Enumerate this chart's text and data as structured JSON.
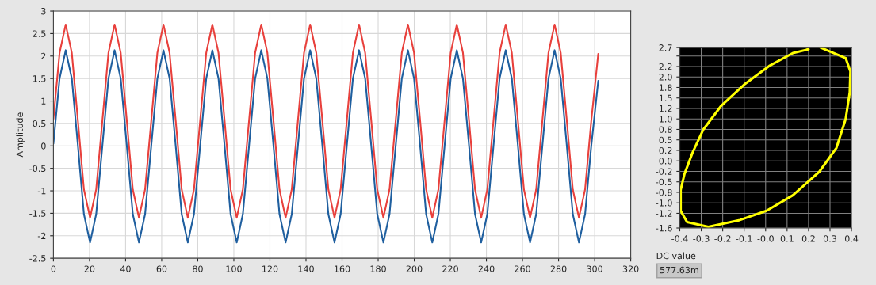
{
  "chart_data": [
    {
      "type": "line",
      "ylabel": "Amplitude",
      "x": [
        0,
        3.4,
        6.8,
        10.2,
        13.6,
        16.9,
        20.3,
        23.7,
        27.1,
        30.5,
        33.9,
        37.3,
        40.7,
        44.0,
        47.4,
        50.8,
        54.2,
        57.6,
        61.0,
        64.4,
        67.8,
        71.1,
        74.5,
        77.9,
        81.3,
        84.7,
        88.1,
        91.5,
        94.9,
        98.2,
        101.6,
        105.0,
        108.4,
        111.8,
        115.2,
        118.6,
        122.0,
        125.3,
        128.7,
        132.1,
        135.5,
        138.9,
        142.3,
        145.7,
        149.1,
        152.4,
        155.8,
        159.2,
        162.6,
        166.0,
        169.4,
        172.8,
        176.2,
        179.5,
        182.9,
        186.3,
        189.7,
        193.1,
        196.5,
        199.9,
        203.3,
        206.6,
        210.0,
        213.4,
        216.8,
        220.2,
        223.6,
        227.0,
        230.4,
        233.7,
        237.1,
        240.5,
        243.9,
        247.3,
        250.7,
        254.1,
        257.5,
        260.8,
        264.2,
        267.6,
        271.0,
        274.4,
        277.8,
        281.2,
        284.6,
        287.9,
        291.3,
        294.7,
        298.1,
        302
      ],
      "series": [
        {
          "color": "#e8403c",
          "values": [
            0.6,
            2.07,
            2.7,
            2.07,
            0.55,
            -0.97,
            -1.6,
            -0.97,
            0.55,
            2.07,
            2.7,
            2.07,
            0.55,
            -0.97,
            -1.6,
            -0.97,
            0.55,
            2.07,
            2.7,
            2.07,
            0.55,
            -0.97,
            -1.6,
            -0.97,
            0.55,
            2.07,
            2.7,
            2.07,
            0.55,
            -0.97,
            -1.6,
            -0.97,
            0.55,
            2.07,
            2.7,
            2.07,
            0.55,
            -0.97,
            -1.6,
            -0.97,
            0.55,
            2.07,
            2.7,
            2.07,
            0.55,
            -0.97,
            -1.6,
            -0.97,
            0.55,
            2.07,
            2.7,
            2.07,
            0.55,
            -0.97,
            -1.6,
            -0.97,
            0.55,
            2.07,
            2.7,
            2.07,
            0.55,
            -0.97,
            -1.6,
            -0.97,
            0.55,
            2.07,
            2.7,
            2.07,
            0.55,
            -0.97,
            -1.6,
            -0.97,
            0.55,
            2.07,
            2.7,
            2.07,
            0.55,
            -0.97,
            -1.6,
            -0.97,
            0.55,
            2.07,
            2.7,
            2.07,
            0.55,
            -0.97,
            -1.6,
            -0.97,
            0.55,
            2.05
          ]
        },
        {
          "color": "#1f5f9f",
          "values": [
            0.05,
            1.5,
            2.13,
            1.5,
            -0.01,
            -1.52,
            -2.15,
            -1.52,
            -0.01,
            1.5,
            2.13,
            1.5,
            -0.01,
            -1.52,
            -2.15,
            -1.52,
            -0.01,
            1.5,
            2.13,
            1.5,
            -0.01,
            -1.52,
            -2.15,
            -1.52,
            -0.01,
            1.5,
            2.13,
            1.5,
            -0.01,
            -1.52,
            -2.15,
            -1.52,
            -0.01,
            1.5,
            2.13,
            1.5,
            -0.01,
            -1.52,
            -2.15,
            -1.52,
            -0.01,
            1.5,
            2.13,
            1.5,
            -0.01,
            -1.52,
            -2.15,
            -1.52,
            -0.01,
            1.5,
            2.13,
            1.5,
            -0.01,
            -1.52,
            -2.15,
            -1.52,
            -0.01,
            1.5,
            2.13,
            1.5,
            -0.01,
            -1.52,
            -2.15,
            -1.52,
            -0.01,
            1.5,
            2.13,
            1.5,
            -0.01,
            -1.52,
            -2.15,
            -1.52,
            -0.01,
            1.5,
            2.13,
            1.5,
            -0.01,
            -1.52,
            -2.15,
            -1.52,
            -0.01,
            1.5,
            2.13,
            1.5,
            -0.01,
            -1.52,
            -2.15,
            -1.52,
            -0.01,
            1.45
          ]
        }
      ],
      "xlim": [
        0,
        320
      ],
      "xticks": [
        0,
        20,
        40,
        60,
        80,
        100,
        120,
        140,
        160,
        180,
        200,
        220,
        240,
        260,
        280,
        300,
        320
      ],
      "ylim": [
        -2.5,
        3
      ],
      "yticks": [
        -2.5,
        -2,
        -1.5,
        -1,
        -0.5,
        0,
        0.5,
        1,
        1.5,
        2,
        2.5,
        3
      ],
      "grid": true
    },
    {
      "type": "line",
      "series": [
        {
          "color": "#ffff00",
          "x": [
            0.256,
            0.373,
            0.395,
            0.392,
            0.373,
            0.33,
            0.25,
            0.127,
            0.004,
            -0.12,
            -0.267,
            -0.366,
            -0.396,
            -0.396,
            -0.378,
            -0.341,
            -0.29,
            -0.206,
            -0.1,
            0.016,
            0.127,
            0.2
          ],
          "values": [
            2.7,
            2.45,
            2.13,
            1.63,
            1.0,
            0.31,
            -0.26,
            -0.82,
            -1.19,
            -1.41,
            -1.57,
            -1.46,
            -1.19,
            -0.69,
            -0.31,
            0.19,
            0.75,
            1.32,
            1.82,
            2.26,
            2.57,
            2.66
          ]
        }
      ],
      "xlim": [
        -0.4,
        0.4
      ],
      "xticks": [
        -0.4,
        -0.3,
        -0.2,
        -0.1,
        {
          "value": 0,
          "label": "-0.0"
        },
        0.1,
        0.2,
        0.3,
        0.4
      ],
      "ylim": [
        -1.6,
        2.7
      ],
      "yticks": [
        -1.6,
        {
          "value": -1.25,
          "label": "-1.2"
        },
        {
          "value": -1.0,
          "label": "-1.0"
        },
        {
          "value": -0.75,
          "label": "-0.8"
        },
        {
          "value": -0.5,
          "label": "-0.5"
        },
        {
          "value": -0.25,
          "label": "-0.2"
        },
        {
          "value": 0,
          "label": "0.0"
        },
        {
          "value": 0.25,
          "label": "0.2"
        },
        0.5,
        {
          "value": 0.75,
          "label": "0.8"
        },
        {
          "value": 1.0,
          "label": "1.0"
        },
        {
          "value": 1.25,
          "label": "1.2"
        },
        1.5,
        {
          "value": 1.75,
          "label": "1.8"
        },
        {
          "value": 2.0,
          "label": "2.0"
        },
        {
          "value": 2.25,
          "label": "2.2"
        },
        {
          "value": 2.5,
          "label": null
        },
        2.7
      ],
      "grid": true
    },
    {
      "type": "other",
      "title": "DC value",
      "annotations": [
        "577.63m"
      ]
    }
  ]
}
